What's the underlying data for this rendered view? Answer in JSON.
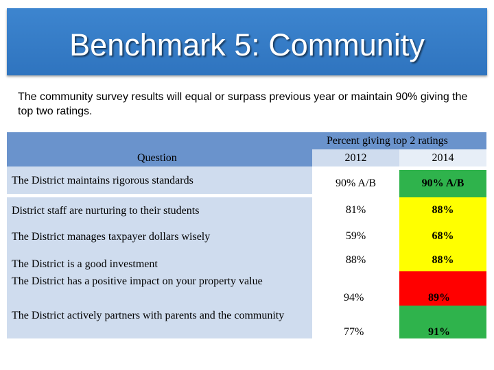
{
  "title": "Benchmark 5: Community",
  "intro": "The community survey results will equal or surpass previous year or maintain 90% giving the top two ratings.",
  "table": {
    "question_header": "Question",
    "percent_header": "Percent giving top 2 ratings",
    "year_2012": "2012",
    "year_2014": "2014",
    "rows": [
      {
        "question": "The District maintains rigorous standards",
        "v2012": "90% A/B",
        "v2014": "90% A/B"
      },
      {
        "question": "District staff are nurturing to their students",
        "v2012": "81%",
        "v2014": "88%"
      },
      {
        "question": "The District manages taxpayer dollars wisely",
        "v2012": "59%",
        "v2014": "68%"
      },
      {
        "question": "The District is a good investment",
        "v2012": "88%",
        "v2014": "88%"
      },
      {
        "question": "The District has a positive impact on your property value",
        "v2012": "94%",
        "v2014": "89%"
      },
      {
        "question": "The District actively partners with parents and the community",
        "v2012": "77%",
        "v2014": "91%"
      }
    ]
  },
  "colors": {
    "banner": "#2f74bf",
    "header_blue": "#6a93cc",
    "row_light": "#cfdcee",
    "highlight_yellow": "#ffff00",
    "highlight_red": "#ff0000",
    "highlight_green": "#2fb34c"
  }
}
